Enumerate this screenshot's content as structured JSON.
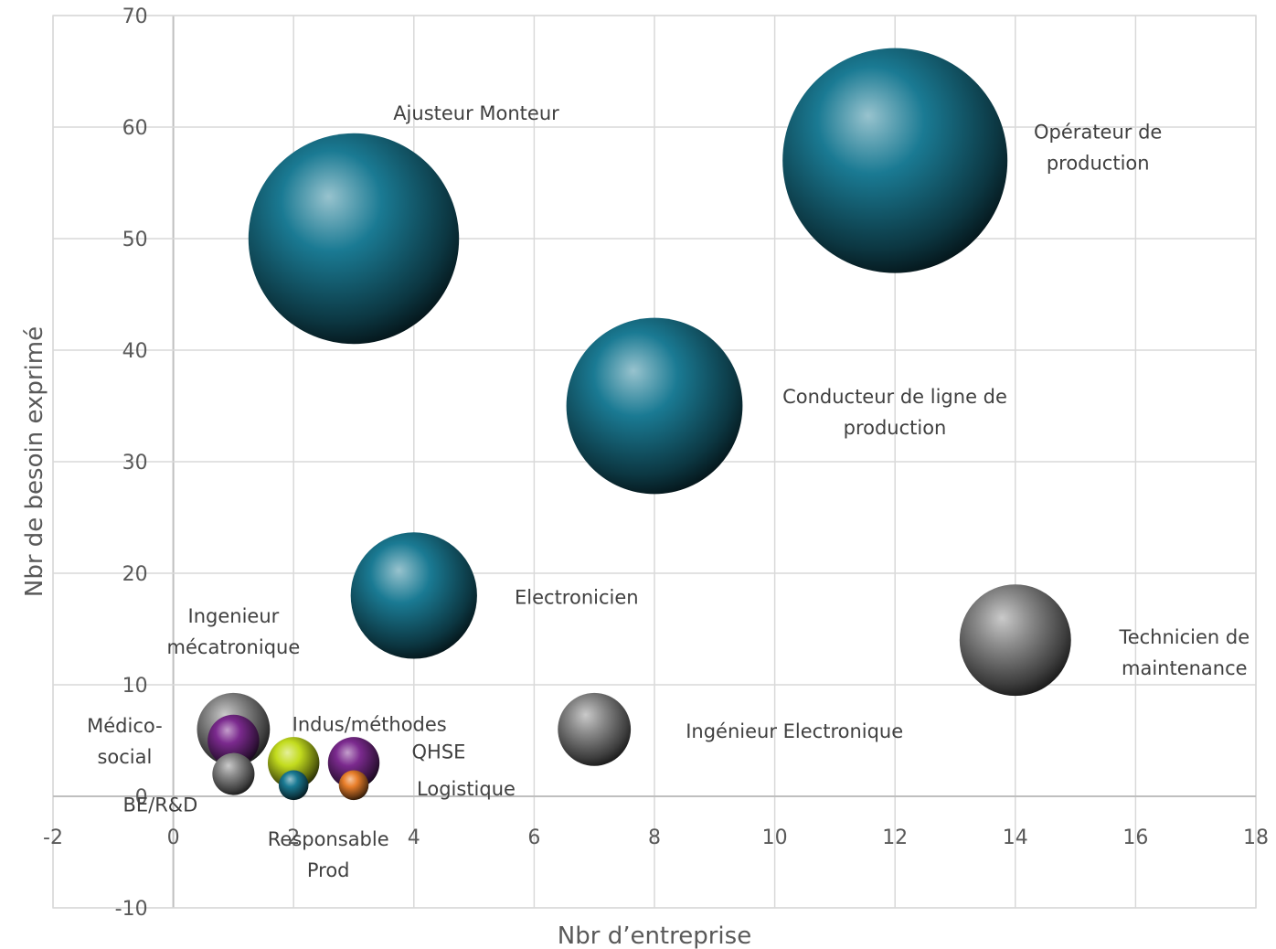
{
  "chart_data": {
    "type": "bubble",
    "xlabel": "Nbr d’entreprise",
    "ylabel": "Nbr de besoin exprimé",
    "xlim": [
      -2,
      18
    ],
    "ylim": [
      -10,
      70
    ],
    "xticks": [
      "-2",
      "0",
      "2",
      "4",
      "6",
      "8",
      "10",
      "12",
      "14",
      "16",
      "18"
    ],
    "yticks": [
      "-10",
      "0",
      "10",
      "20",
      "30",
      "40",
      "50",
      "60",
      "70"
    ],
    "grid": true,
    "colors": {
      "teal": "#1a7a93",
      "gray": "#8a8a8a",
      "purple": "#7b2a8e",
      "lime": "#c3dc1e",
      "orange": "#e87e2a"
    },
    "points": [
      {
        "label": "Ajusteur Monteur",
        "x": 3,
        "y": 50,
        "size": 50,
        "color": "teal"
      },
      {
        "label": "Opérateur de production",
        "x": 12,
        "y": 57,
        "size": 57,
        "color": "teal"
      },
      {
        "label": "Conducteur de ligne de production",
        "x": 8,
        "y": 35,
        "size": 35,
        "color": "teal"
      },
      {
        "label": "Electronicien",
        "x": 4,
        "y": 18,
        "size": 18,
        "color": "teal"
      },
      {
        "label": "Technicien de maintenance",
        "x": 14,
        "y": 14,
        "size": 14,
        "color": "gray"
      },
      {
        "label": "Ingénieur Electronique",
        "x": 7,
        "y": 6,
        "size": 6,
        "color": "gray"
      },
      {
        "label": "Ingenieur mécatronique",
        "x": 1,
        "y": 6,
        "size": 6,
        "color": "gray"
      },
      {
        "label": "BE/R&D",
        "x": 1,
        "y": 2,
        "size": 2,
        "color": "gray"
      },
      {
        "label": "Responsable Prod",
        "x": 2,
        "y": 1,
        "size": 1,
        "color": "teal"
      },
      {
        "label": "Logistique",
        "x": 3,
        "y": 1,
        "size": 1,
        "color": "orange"
      },
      {
        "label": "Médico-social",
        "x": 1,
        "y": 5,
        "size": 3,
        "color": "purple"
      },
      {
        "label": "Indus/méthodes",
        "x": 2,
        "y": 3,
        "size": 3,
        "color": "lime"
      },
      {
        "label": "QHSE",
        "x": 3,
        "y": 3,
        "size": 3,
        "color": "purple"
      }
    ]
  }
}
